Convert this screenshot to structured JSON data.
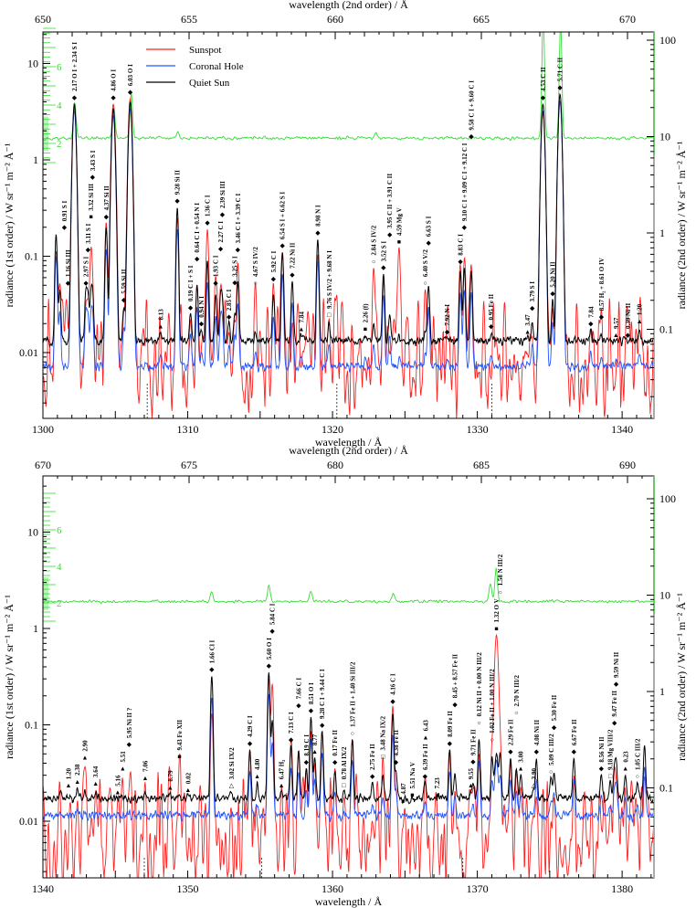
{
  "legend": [
    {
      "name": "Sunspot",
      "key": "ss",
      "color": "#ff2020"
    },
    {
      "name": "Coronal Hole",
      "key": "ch",
      "color": "#2255ff"
    },
    {
      "name": "Quiet Sun",
      "key": "qs",
      "color": "#000000"
    }
  ],
  "ratio_color": "#33dd33",
  "chart_data": [
    {
      "type": "line",
      "panel": "upper",
      "xlabel": "wavelength /  Å",
      "x2label": "wavelength (2nd order) /  Å",
      "ylabel": "radiance (1st order) / W sr⁻¹ m⁻² Å⁻¹",
      "y2label": "radiance (2nd order) / W sr⁻¹ m⁻² Å⁻¹",
      "xlim": [
        1300,
        1342.2
      ],
      "x_ticks": [
        1300,
        1310,
        1320,
        1330,
        1340
      ],
      "x2_ticks": [
        650,
        655,
        660,
        665,
        670
      ],
      "y_ticks": [
        10,
        1,
        0.1,
        0.01
      ],
      "y2_ticks": [
        100,
        10,
        1,
        0.1
      ],
      "ratio_ticks": [
        2,
        4,
        6
      ],
      "scale": "log",
      "baselines": {
        "qs": 0.013,
        "ch": 0.0072,
        "ss": 0.0035,
        "ratio": 2.3
      },
      "dashed_markers": [
        1307.2,
        1320.3,
        1331.0
      ],
      "ratio_peaks": [
        [
          1302.2,
          1.9
        ],
        [
          1304.9,
          1.6
        ],
        [
          1306.1,
          2.3
        ],
        [
          1334.55,
          6.5
        ],
        [
          1335.75,
          6.0
        ],
        [
          1309.3,
          0.3
        ],
        [
          1323.0,
          0.3
        ]
      ],
      "lines": [
        [
          1300.91,
          "0.91 S I",
          "diamond",
          0.17,
          0.1
        ],
        [
          1301.16,
          "1.16 Si III",
          "diamond",
          0.045,
          0.045
        ],
        [
          1302.17,
          "2.17 O I + 2.34 S I",
          "diamond",
          3.8,
          3.5
        ],
        [
          1302.97,
          "2.97 S I",
          "diamond",
          0.045,
          0.03
        ],
        [
          1303.11,
          "3.11 S I",
          "diamond",
          0.04,
          0.03
        ],
        [
          1303.32,
          "3.32 Si III",
          "square",
          0.04,
          0.1
        ],
        [
          1303.43,
          "3.43 S I",
          "diamond",
          0.04,
          0.04
        ],
        [
          1304.37,
          "4.37 Si II",
          "diamond",
          0.2,
          0.22
        ],
        [
          1304.86,
          "4.86 O I",
          "diamond",
          3.4,
          3.8
        ],
        [
          1305.59,
          "5.59 Si II",
          "diamond",
          0.03,
          0.025
        ],
        [
          1306.03,
          "6.03 O I",
          "diamond",
          4.0,
          4.3
        ],
        [
          1308.13,
          "8.13",
          "triangle",
          0.016,
          0.006
        ],
        [
          1309.28,
          "9.28 Si II",
          "diamond",
          0.32,
          0.25
        ],
        [
          1310.19,
          "0.19 C I + S I",
          "diamond",
          0.025,
          0.02
        ],
        [
          1310.64,
          "0.64 C I + 0.54 N I",
          "diamond",
          0.05,
          0.05
        ],
        [
          1310.94,
          "0.94 N I",
          "diamond",
          0.017,
          0.01
        ],
        [
          1311.36,
          "1.36 C I",
          "diamond",
          0.09,
          0.19
        ],
        [
          1311.93,
          "1.93 C I",
          "diamond",
          0.04,
          0.045
        ],
        [
          1312.27,
          "2.27 C I",
          "diamond",
          0.038,
          0.04
        ],
        [
          1312.39,
          "2.39 Si III",
          "diamond",
          0.035,
          0.03
        ],
        [
          1312.85,
          "2.85 C I",
          "diamond",
          0.02,
          0.015
        ],
        [
          1313.25,
          "3.25 S I",
          "diamond",
          0.025,
          0.02
        ],
        [
          1313.46,
          "3.46 C I + 3.39 C I",
          "diamond",
          0.055,
          0.075
        ],
        [
          1314.67,
          "4.67 S IV/2",
          "circle",
          0.016,
          0.045
        ],
        [
          1315.92,
          "5.92 C I",
          "diamond",
          0.04,
          0.05
        ],
        [
          1316.54,
          "6.54 S I + 6.62 S I",
          "diamond",
          0.11,
          0.11
        ],
        [
          1317.22,
          "7.22 Ni II",
          "diamond",
          0.055,
          0.018
        ],
        [
          1317.84,
          "7.84",
          "triangle",
          0.015,
          0.007
        ],
        [
          1318.98,
          "8.98 N I",
          "diamond",
          0.15,
          0.1
        ],
        [
          1319.76,
          "9.76 S IV/2 + 9.68 N I",
          "open-square",
          0.02,
          0.021
        ],
        [
          1322.26,
          "2.26 (f)",
          "square",
          0.015,
          0.008
        ],
        [
          1322.84,
          "2.84 S IV/2",
          "circle",
          0.02,
          0.075
        ],
        [
          1323.52,
          "3.52 S I",
          "diamond",
          0.065,
          0.045
        ],
        [
          1323.95,
          "3.95 C II + 3.91 C II",
          "diamond",
          0.025,
          0.01
        ],
        [
          1324.59,
          "4.59 Mg V",
          "square",
          0.015,
          0.12
        ],
        [
          1326.4,
          "6.40 S V/2",
          "circle",
          0.016,
          0.045
        ],
        [
          1326.63,
          "6.63 S I",
          "diamond",
          0.05,
          0.02
        ],
        [
          1327.92,
          "7.92 N I",
          "diamond",
          0.014,
          0.008
        ],
        [
          1328.83,
          "8.83 C I",
          "diamond",
          0.07,
          0.075
        ],
        [
          1329.1,
          "9.10 C I + 9.09 C I + 9.12 C I",
          "diamond",
          0.075,
          0.085
        ],
        [
          1329.58,
          "9.58 C I + 9.60 C I",
          "diamond",
          0.07,
          0.075
        ],
        [
          1330.95,
          "0.95 Fe II",
          "diamond",
          0.016,
          0.006
        ],
        [
          1333.47,
          "3.47",
          "triangle",
          0.014,
          0.01
        ],
        [
          1333.79,
          "3.79 S I",
          "diamond",
          0.02,
          0.012
        ],
        [
          1334.53,
          "4.53 C II",
          "diamond",
          3.8,
          3.0
        ],
        [
          1335.2,
          "5.20 Ni II",
          "diamond",
          0.035,
          0.03
        ],
        [
          1335.71,
          "5.71 C II",
          "diamond",
          4.8,
          4.0
        ],
        [
          1337.84,
          "7.84",
          "diamond",
          0.017,
          0.006
        ],
        [
          1338.57,
          "8.57 H₂ + 8.61 O IV",
          "diamond",
          0.015,
          0.02
        ],
        [
          1339.57,
          "9.57",
          "triangle",
          0.013,
          0.006
        ],
        [
          1340.39,
          "0.39 Ni II",
          "diamond",
          0.013,
          0.005
        ],
        [
          1341.2,
          "1.20",
          "triangle",
          0.016,
          0.018
        ]
      ]
    },
    {
      "type": "line",
      "panel": "lower",
      "xlabel": "wavelength /  Å",
      "x2label": "wavelength (2nd order) /  Å",
      "ylabel": "radiance (1st order) / W sr⁻¹ m⁻² Å⁻¹",
      "y2label": "radiance (2nd order) / W sr⁻¹ m⁻² Å⁻¹",
      "xlim": [
        1340,
        1382.2
      ],
      "x_ticks": [
        1340,
        1350,
        1360,
        1370,
        1380
      ],
      "x2_ticks": [
        670,
        675,
        680,
        685,
        690
      ],
      "y_ticks": [
        10,
        1,
        0.1,
        0.01
      ],
      "y2_ticks": [
        100,
        10,
        1,
        0.1
      ],
      "ratio_ticks": [
        2,
        4,
        6
      ],
      "scale": "log",
      "baselines": {
        "qs": 0.017,
        "ch": 0.0115,
        "ss": 0.003,
        "ratio": 2.1
      },
      "dashed_markers": [
        1347.0,
        1355.1,
        1369.0
      ],
      "ratio_peaks": [
        [
          1351.66,
          0.5
        ],
        [
          1355.6,
          0.9
        ],
        [
          1358.5,
          0.5
        ],
        [
          1364.2,
          0.4
        ],
        [
          1371.3,
          1.8
        ],
        [
          1370.9,
          1.0
        ]
      ],
      "lines": [
        [
          1341.2,
          "1.20",
          "triangle",
          0.02,
          0.008
        ],
        [
          1342.38,
          "2.38",
          "triangle",
          0.022,
          0.015
        ],
        [
          1342.9,
          "2.90",
          "triangle",
          0.02,
          0.021
        ],
        [
          1343.64,
          "3.64",
          "triangle",
          0.02,
          0.021
        ],
        [
          1345.16,
          "5.16",
          "triangle",
          0.017,
          0.008
        ],
        [
          1345.51,
          "5.51",
          "triangle",
          0.016,
          0.006
        ],
        [
          1345.95,
          "5.95 Ni II ?",
          "diamond",
          0.017,
          0.008
        ],
        [
          1347.06,
          "7.06",
          "triangle",
          0.02,
          0.024
        ],
        [
          1348.79,
          "8.79",
          "triangle",
          0.019,
          0.01
        ],
        [
          1349.43,
          "9.43 Fe XII",
          "square",
          0.019,
          0.04
        ],
        [
          1350.02,
          "0.02",
          "triangle",
          0.018,
          0.004
        ],
        [
          1351.66,
          "1.66 Cl I",
          "diamond",
          0.32,
          0.13
        ],
        [
          1353.02,
          "3.02 Si IX/2",
          "open-triangle",
          0.02,
          0.005
        ],
        [
          1354.29,
          "4.29 C I",
          "diamond",
          0.055,
          0.055
        ],
        [
          1354.8,
          "4.80",
          "triangle",
          0.025,
          0.01
        ],
        [
          1355.6,
          "5.60 O I",
          "diamond",
          0.35,
          0.3
        ],
        [
          1355.84,
          "5.84 C I",
          "diamond",
          0.11,
          0.26
        ],
        [
          1356.47,
          "6.47 H₂",
          "triangle",
          0.02,
          0.02
        ],
        [
          1357.13,
          "7.13 C I",
          "diamond",
          0.06,
          0.06
        ],
        [
          1357.66,
          "7.66 C I",
          "diamond",
          0.055,
          0.05
        ],
        [
          1358.19,
          "8.19 C I",
          "diamond",
          0.035,
          0.03
        ],
        [
          1358.51,
          "8.51 O I",
          "diamond",
          0.12,
          0.08
        ],
        [
          1358.77,
          "8.77",
          "triangle",
          0.045,
          0.04
        ],
        [
          1359.28,
          "9.28 C I + 9.44 C I",
          "diamond",
          0.085,
          0.085
        ],
        [
          1360.17,
          "0.17 Fe II",
          "diamond",
          0.033,
          0.035
        ],
        [
          1360.78,
          "0.78 Al IX/2",
          "open-square",
          0.02,
          0.015
        ],
        [
          1361.37,
          "1.37 Fe II + 1.40 Si III/2",
          "circle",
          0.07,
          0.07
        ],
        [
          1362.75,
          "2.75 Fe II",
          "diamond",
          0.025,
          0.01
        ],
        [
          1363.48,
          "3.48 Na IX/2",
          "open-square",
          0.03,
          0.04
        ],
        [
          1364.16,
          "4.16 C I",
          "diamond",
          0.13,
          0.15
        ],
        [
          1364.38,
          "4.38 Fe II",
          "diamond",
          0.035,
          0.02
        ],
        [
          1364.87,
          "4.87",
          "triangle",
          0.014,
          0.006
        ],
        [
          1365.51,
          "5.51 Na V",
          "square",
          0.016,
          0.006
        ],
        [
          1366.39,
          "6.39 Fe II",
          "diamond",
          0.025,
          0.02
        ],
        [
          1366.43,
          "6.43",
          "triangle",
          0.018,
          0.01
        ],
        [
          1367.23,
          "7.23",
          "triangle",
          0.016,
          0.007
        ],
        [
          1368.09,
          "8.09 Fe II",
          "diamond",
          0.055,
          0.04
        ],
        [
          1368.45,
          "8.45 + 8.57 Fe II",
          "diamond",
          0.03,
          0.02
        ],
        [
          1369.55,
          "9.55",
          "triangle",
          0.02,
          0.02
        ],
        [
          1369.71,
          "9.71 Fe II",
          "diamond",
          0.025,
          0.02
        ],
        [
          1370.12,
          "0.12 Ni II + 0.00 N III/2",
          "circle",
          0.07,
          0.04
        ],
        [
          1371.02,
          "1.02 Fe II + 1.00 N III/2",
          "circle",
          0.045,
          0.06
        ],
        [
          1371.32,
          "1.32 O V",
          "square",
          0.05,
          0.85
        ],
        [
          1371.58,
          "1.58 N III/2",
          "circle",
          0.05,
          0.05
        ],
        [
          1372.29,
          "2.29 Fe II",
          "diamond",
          0.045,
          0.04
        ],
        [
          1372.7,
          "2.70 N III/2",
          "circle",
          0.035,
          0.02
        ],
        [
          1373.0,
          "3.00",
          "triangle",
          0.03,
          0.02
        ],
        [
          1373.9,
          "3.90",
          "open-triangle",
          0.02,
          0.01
        ],
        [
          1374.08,
          "4.08 Ni II",
          "diamond",
          0.045,
          0.015
        ],
        [
          1375.09,
          "5.09 C III/2",
          "circle",
          0.028,
          0.01
        ],
        [
          1375.3,
          "5.30 Fe II",
          "diamond",
          0.032,
          0.015
        ],
        [
          1376.67,
          "6.67 Fe II",
          "diamond",
          0.045,
          0.02
        ],
        [
          1378.56,
          "8.56 Ni II",
          "diamond",
          0.03,
          0.01
        ],
        [
          1379.18,
          "9.18 Mg VIII/2",
          "open-square",
          0.025,
          0.01
        ],
        [
          1379.47,
          "9.47 Fe II",
          "diamond",
          0.035,
          0.03
        ],
        [
          1379.59,
          "9.59 Ni II",
          "diamond",
          0.04,
          0.02
        ],
        [
          1380.23,
          "0.23",
          "triangle",
          0.03,
          0.01
        ],
        [
          1381.05,
          "1.05 C III/2",
          "circle",
          0.025,
          0.01
        ],
        [
          1381.55,
          "",
          "none",
          0.06,
          0.03
        ]
      ]
    }
  ]
}
